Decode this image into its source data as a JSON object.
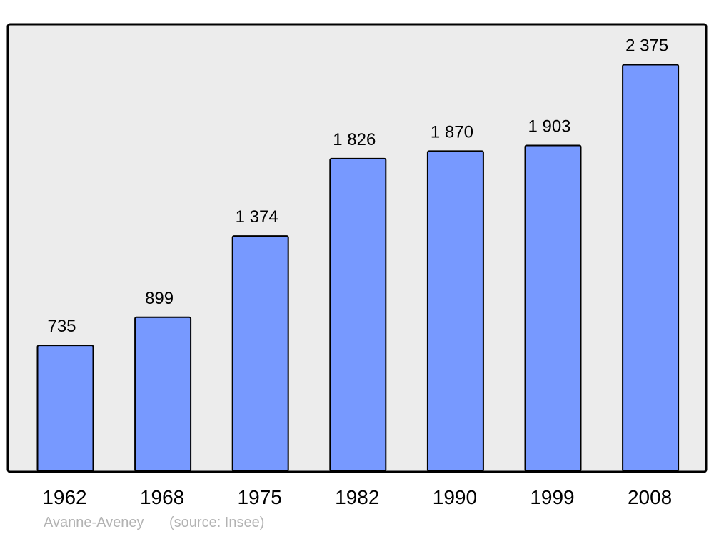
{
  "chart_data": {
    "type": "bar",
    "categories": [
      "1962",
      "1968",
      "1975",
      "1982",
      "1990",
      "1999",
      "2008"
    ],
    "values": [
      735,
      899,
      1374,
      1826,
      1870,
      1903,
      2375
    ],
    "value_labels": [
      "735",
      "899",
      "1 374",
      "1 826",
      "1 870",
      "1 903",
      "2 375"
    ],
    "title": "",
    "xlabel": "",
    "ylabel": "",
    "ylim": [
      0,
      2611
    ],
    "grid": false,
    "colors": {
      "bar_fill": "#7799ff",
      "bar_stroke": "#000000",
      "plot_background": "#ececec",
      "caption": "#b3b3b3"
    }
  },
  "caption": {
    "place": "Avanne-Aveney",
    "source": "(source: Insee)"
  }
}
